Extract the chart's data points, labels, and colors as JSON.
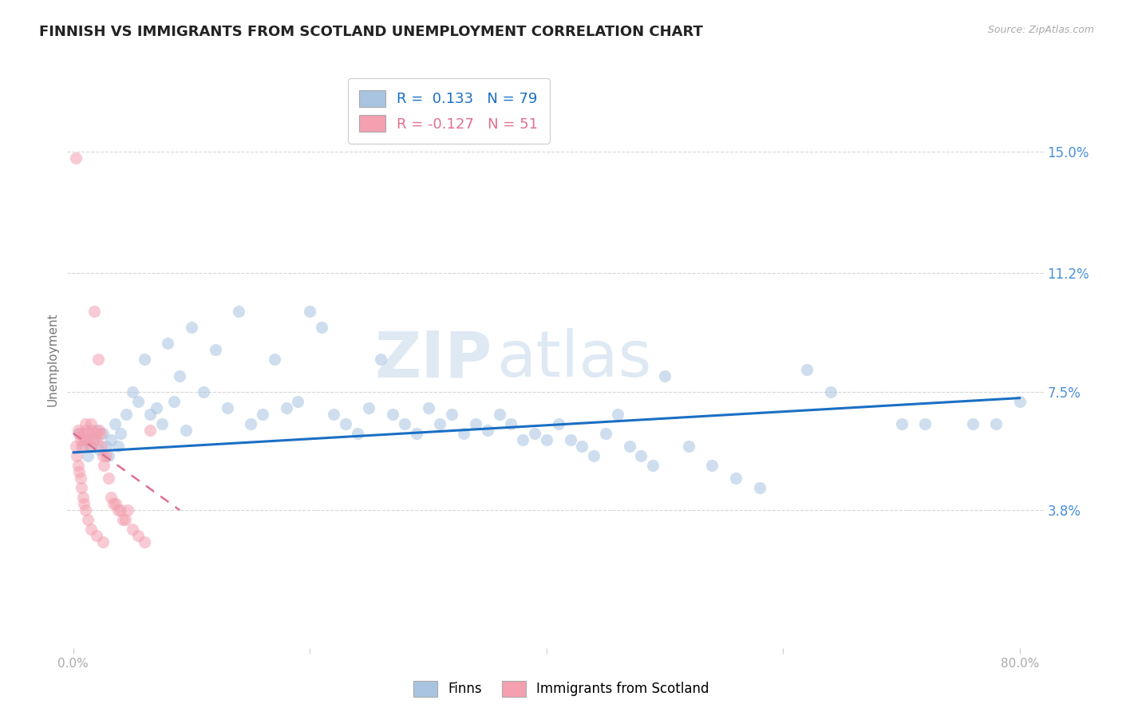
{
  "title": "FINNISH VS IMMIGRANTS FROM SCOTLAND UNEMPLOYMENT CORRELATION CHART",
  "source": "Source: ZipAtlas.com",
  "ylabel": "Unemployment",
  "ytick_labels": [
    "15.0%",
    "11.2%",
    "7.5%",
    "3.8%"
  ],
  "ytick_values": [
    0.15,
    0.112,
    0.075,
    0.038
  ],
  "xlim": [
    -0.005,
    0.82
  ],
  "ylim": [
    -0.005,
    0.175
  ],
  "watermark_text": "ZIP",
  "watermark_text2": "atlas",
  "finns_color": "#a8c4e0",
  "scots_color": "#f4a0b0",
  "finn_line_color": "#1a6fc4",
  "scot_line_color": "#e07090",
  "background_color": "#ffffff",
  "grid_color": "#cccccc",
  "title_fontsize": 13,
  "label_fontsize": 11,
  "tick_fontsize": 11,
  "dot_size": 120,
  "dot_alpha": 0.55,
  "right_tick_color": "#4a90d9",
  "finn_trend_x": [
    0.0,
    0.8
  ],
  "finn_trend_y": [
    0.056,
    0.073
  ],
  "scot_trend_x": [
    0.0,
    0.09
  ],
  "scot_trend_y": [
    0.062,
    0.038
  ],
  "finns_x": [
    0.005,
    0.008,
    0.01,
    0.012,
    0.015,
    0.018,
    0.02,
    0.022,
    0.025,
    0.028,
    0.03,
    0.032,
    0.035,
    0.038,
    0.04,
    0.045,
    0.05,
    0.055,
    0.06,
    0.065,
    0.07,
    0.075,
    0.08,
    0.085,
    0.09,
    0.095,
    0.1,
    0.11,
    0.12,
    0.13,
    0.14,
    0.15,
    0.16,
    0.17,
    0.18,
    0.19,
    0.2,
    0.21,
    0.22,
    0.23,
    0.24,
    0.25,
    0.26,
    0.27,
    0.28,
    0.29,
    0.3,
    0.31,
    0.32,
    0.33,
    0.34,
    0.35,
    0.36,
    0.37,
    0.38,
    0.39,
    0.4,
    0.41,
    0.42,
    0.43,
    0.44,
    0.45,
    0.46,
    0.47,
    0.48,
    0.49,
    0.5,
    0.52,
    0.54,
    0.56,
    0.58,
    0.62,
    0.64,
    0.7,
    0.72,
    0.76,
    0.78,
    0.8
  ],
  "finns_y": [
    0.062,
    0.058,
    0.06,
    0.055,
    0.058,
    0.06,
    0.063,
    0.057,
    0.062,
    0.058,
    0.055,
    0.06,
    0.065,
    0.058,
    0.062,
    0.068,
    0.075,
    0.072,
    0.085,
    0.068,
    0.07,
    0.065,
    0.09,
    0.072,
    0.08,
    0.063,
    0.095,
    0.075,
    0.088,
    0.07,
    0.1,
    0.065,
    0.068,
    0.085,
    0.07,
    0.072,
    0.1,
    0.095,
    0.068,
    0.065,
    0.062,
    0.07,
    0.085,
    0.068,
    0.065,
    0.062,
    0.07,
    0.065,
    0.068,
    0.062,
    0.065,
    0.063,
    0.068,
    0.065,
    0.06,
    0.062,
    0.06,
    0.065,
    0.06,
    0.058,
    0.055,
    0.062,
    0.068,
    0.058,
    0.055,
    0.052,
    0.08,
    0.058,
    0.052,
    0.048,
    0.045,
    0.082,
    0.075,
    0.065,
    0.065,
    0.065,
    0.065,
    0.072
  ],
  "scots_x": [
    0.002,
    0.004,
    0.005,
    0.006,
    0.007,
    0.008,
    0.009,
    0.01,
    0.011,
    0.012,
    0.013,
    0.014,
    0.015,
    0.016,
    0.017,
    0.018,
    0.019,
    0.02,
    0.021,
    0.022,
    0.023,
    0.024,
    0.025,
    0.026,
    0.028,
    0.03,
    0.032,
    0.034,
    0.036,
    0.038,
    0.04,
    0.042,
    0.044,
    0.046,
    0.05,
    0.055,
    0.06,
    0.002,
    0.003,
    0.004,
    0.005,
    0.006,
    0.007,
    0.008,
    0.009,
    0.01,
    0.012,
    0.015,
    0.02,
    0.025,
    0.065
  ],
  "scots_y": [
    0.148,
    0.063,
    0.062,
    0.06,
    0.058,
    0.062,
    0.06,
    0.065,
    0.063,
    0.06,
    0.062,
    0.058,
    0.065,
    0.063,
    0.06,
    0.1,
    0.062,
    0.06,
    0.085,
    0.063,
    0.062,
    0.058,
    0.055,
    0.052,
    0.055,
    0.048,
    0.042,
    0.04,
    0.04,
    0.038,
    0.038,
    0.035,
    0.035,
    0.038,
    0.032,
    0.03,
    0.028,
    0.058,
    0.055,
    0.052,
    0.05,
    0.048,
    0.045,
    0.042,
    0.04,
    0.038,
    0.035,
    0.032,
    0.03,
    0.028,
    0.063
  ]
}
